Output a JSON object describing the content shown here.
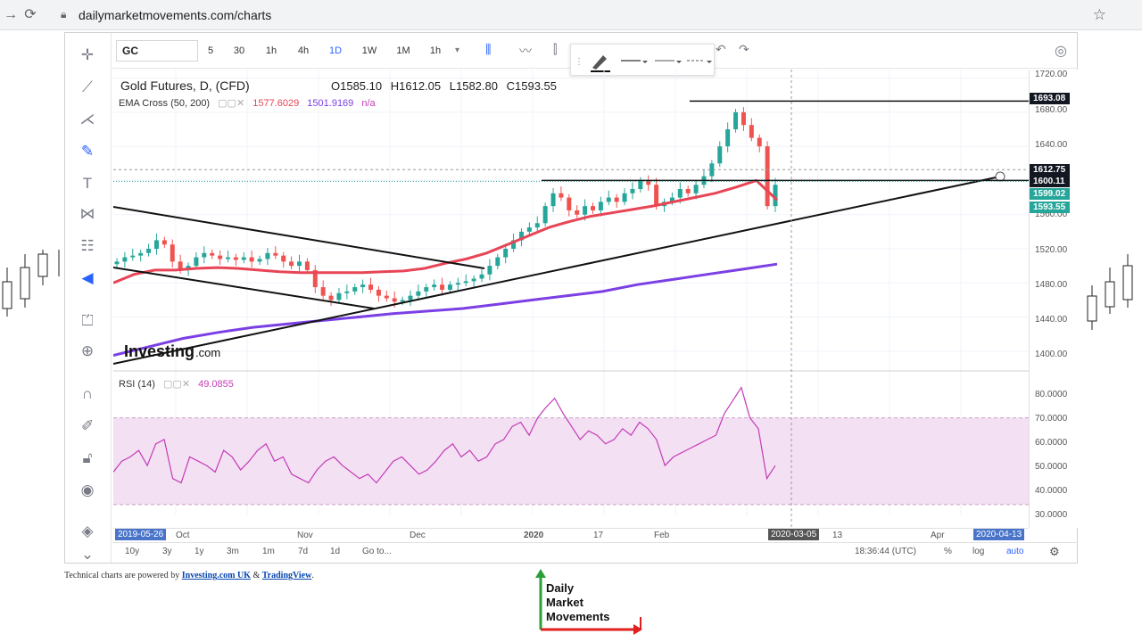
{
  "browser": {
    "url": "dailymarketmovements.com/charts"
  },
  "toolbar": {
    "symbol": "GC",
    "timeframes": [
      "5",
      "30",
      "1h",
      "4h",
      "1D",
      "1W",
      "1M",
      "1h"
    ],
    "active_timeframe": "1D"
  },
  "legend": {
    "title": "Gold Futures, D, (CFD)",
    "open": "O1585.10",
    "high": "H1612.05",
    "low": "L1582.80",
    "close": "C1593.55",
    "ema_label": "EMA Cross (50, 200)",
    "ema_fast": "1577.6029",
    "ema_slow": "1501.9169",
    "ema_na": "n/a",
    "rsi_label": "RSI (14)",
    "rsi_value": "49.0855"
  },
  "watermark": {
    "brand": "Investing",
    "suffix": ".com"
  },
  "price_axis": {
    "ticks": [
      "1720.00",
      "1680.00",
      "1640.00",
      "1560.00",
      "1520.00",
      "1480.00",
      "1440.00",
      "1400.00"
    ],
    "tags": [
      {
        "text": "1693.08",
        "color": "#131722"
      },
      {
        "text": "1612.75",
        "color": "#131722"
      },
      {
        "text": "1600.11",
        "color": "#131722"
      },
      {
        "text": "1599.02",
        "color": "#26a69a"
      },
      {
        "text": "1593.55",
        "color": "#26a69a"
      }
    ],
    "rsi_ticks": [
      "80.0000",
      "70.0000",
      "60.0000",
      "50.0000",
      "40.0000",
      "30.0000"
    ]
  },
  "time_axis": {
    "labels": [
      "2019-05-26",
      "Oct",
      "Nov",
      "Dec",
      "2020",
      "17",
      "Feb",
      "2020-03-05",
      "13",
      "Apr",
      "2020-04-13"
    ]
  },
  "bottom_bar": {
    "ranges": [
      "10y",
      "3y",
      "1y",
      "3m",
      "1m",
      "7d",
      "1d",
      "Go to..."
    ],
    "clock": "18:36:44 (UTC)",
    "percent": "%",
    "log": "log",
    "auto": "auto"
  },
  "credit": {
    "prefix": "Technical charts are powered by",
    "link1": "Investing.com UK",
    "amp": "&",
    "link2": "TradingView",
    "suffix": "."
  },
  "logo": {
    "line1": "Daily",
    "line2": "Market",
    "line3": "Movements"
  },
  "colors": {
    "up": "#26a69a",
    "down": "#ef5350",
    "ema_fast": "#e84556",
    "ema_slow": "#7b3fe4",
    "rsi": "#c43bb8",
    "rsi_band": "#f3e0f2"
  },
  "chart_data": {
    "type": "candlestick",
    "symbol": "Gold Futures",
    "indicators": [
      "EMA Cross (50, 200)",
      "RSI (14)"
    ],
    "y_range": [
      1380,
      1730
    ],
    "rsi_range": [
      25,
      90
    ],
    "closes": [
      1505,
      1510,
      1512,
      1515,
      1520,
      1530,
      1525,
      1505,
      1495,
      1500,
      1510,
      1515,
      1512,
      1508,
      1510,
      1507,
      1510,
      1505,
      1508,
      1515,
      1512,
      1505,
      1500,
      1505,
      1495,
      1475,
      1465,
      1460,
      1468,
      1470,
      1475,
      1478,
      1472,
      1465,
      1462,
      1458,
      1460,
      1465,
      1470,
      1475,
      1478,
      1472,
      1478,
      1480,
      1482,
      1485,
      1490,
      1500,
      1510,
      1520,
      1530,
      1540,
      1545,
      1550,
      1570,
      1585,
      1580,
      1565,
      1560,
      1570,
      1565,
      1575,
      1580,
      1575,
      1585,
      1590,
      1600,
      1595,
      1570,
      1575,
      1580,
      1590,
      1585,
      1595,
      1605,
      1620,
      1640,
      1660,
      1680,
      1665,
      1650,
      1640,
      1570,
      1595
    ],
    "ema_fast": [
      1480,
      1490,
      1495,
      1495,
      1497,
      1498,
      1497,
      1495,
      1493,
      1492,
      1492,
      1492,
      1492,
      1493,
      1494,
      1497,
      1503,
      1508,
      1515,
      1525,
      1535,
      1545,
      1552,
      1558,
      1562,
      1566,
      1570,
      1575,
      1580,
      1585,
      1592,
      1600,
      1577
    ],
    "ema_slow": [
      1395,
      1405,
      1415,
      1422,
      1428,
      1432,
      1436,
      1440,
      1444,
      1447,
      1450,
      1455,
      1460,
      1465,
      1470,
      1478,
      1484,
      1490,
      1496,
      1502
    ],
    "rsi": [
      45,
      50,
      52,
      55,
      48,
      58,
      60,
      42,
      40,
      52,
      50,
      48,
      45,
      55,
      52,
      46,
      50,
      55,
      58,
      50,
      52,
      44,
      42,
      40,
      46,
      50,
      52,
      48,
      45,
      42,
      44,
      40,
      45,
      50,
      52,
      48,
      44,
      46,
      50,
      55,
      58,
      52,
      55,
      50,
      52,
      58,
      60,
      66,
      68,
      62,
      70,
      75,
      79,
      72,
      66,
      60,
      64,
      62,
      58,
      60,
      65,
      62,
      68,
      65,
      60,
      48,
      52,
      54,
      56,
      58,
      60,
      62,
      72,
      78,
      84,
      70,
      65,
      42,
      48
    ],
    "price_lines": [
      1693.08,
      1600.11,
      1612.75
    ]
  }
}
